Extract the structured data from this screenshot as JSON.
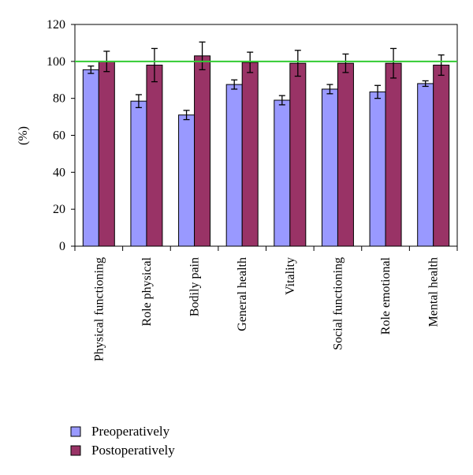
{
  "chart_data": {
    "type": "bar",
    "title": "",
    "xlabel": "",
    "ylabel": "(%)",
    "ylim": [
      0,
      120
    ],
    "yticks": [
      0,
      20,
      40,
      60,
      80,
      100,
      120
    ],
    "reference_line": {
      "value": 100,
      "color": "#33cc33"
    },
    "grid": false,
    "legend_position": "bottom-left",
    "categories": [
      "Physical functioning",
      "Role physical",
      "Bodily pain",
      "General health",
      "Vitality",
      "Social functioning",
      "Role emotional",
      "Mental health"
    ],
    "series": [
      {
        "name": "Preoperatively",
        "color": "#9999ff",
        "values": [
          95.5,
          78.5,
          71.0,
          87.5,
          79.0,
          85.0,
          83.5,
          88.0
        ],
        "errors": [
          2.0,
          3.5,
          2.5,
          2.5,
          2.5,
          2.5,
          3.5,
          1.5
        ]
      },
      {
        "name": "Postoperatively",
        "color": "#993366",
        "values": [
          100.0,
          98.0,
          103.0,
          99.5,
          99.0,
          99.0,
          99.0,
          98.0
        ],
        "errors": [
          5.5,
          9.0,
          7.5,
          5.5,
          7.0,
          5.0,
          8.0,
          5.5
        ]
      }
    ]
  }
}
